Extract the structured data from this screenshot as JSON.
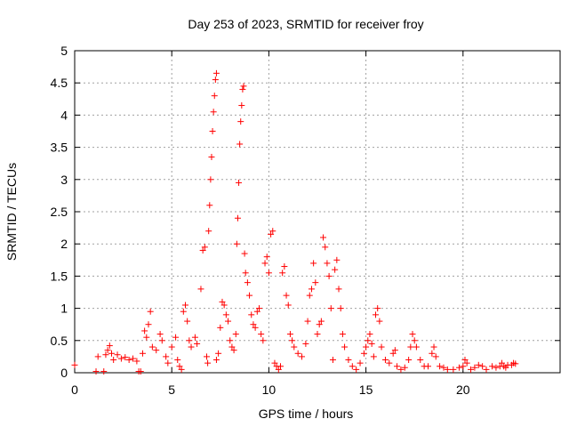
{
  "chart_data": {
    "type": "scatter",
    "title": "Day 253 of 2023, SRMTID for receiver froy",
    "xlabel": "GPS time / hours",
    "ylabel": "SRMTID / TECUs",
    "xlim": [
      0,
      25
    ],
    "ylim": [
      0,
      5
    ],
    "xticks": [
      0,
      5,
      10,
      15,
      20
    ],
    "xtick_labels": [
      "0",
      "5",
      "10",
      "15",
      "20"
    ],
    "yticks": [
      0,
      0.5,
      1,
      1.5,
      2,
      2.5,
      3,
      3.5,
      4,
      4.5,
      5
    ],
    "ytick_labels": [
      "0",
      "0.5",
      "1",
      "1.5",
      "2",
      "2.5",
      "3",
      "3.5",
      "4",
      "4.5",
      "5"
    ],
    "grid": true,
    "marker": "+",
    "color": "#ff0000",
    "series": [
      {
        "name": "SRMTID",
        "points": [
          [
            0.0,
            0.12
          ],
          [
            1.1,
            0.02
          ],
          [
            1.2,
            0.25
          ],
          [
            1.5,
            0.02
          ],
          [
            1.6,
            0.28
          ],
          [
            1.7,
            0.35
          ],
          [
            1.8,
            0.42
          ],
          [
            1.9,
            0.3
          ],
          [
            2.0,
            0.2
          ],
          [
            2.2,
            0.28
          ],
          [
            2.4,
            0.22
          ],
          [
            2.6,
            0.24
          ],
          [
            2.8,
            0.2
          ],
          [
            3.0,
            0.22
          ],
          [
            3.2,
            0.18
          ],
          [
            3.3,
            0.02
          ],
          [
            3.4,
            0.02
          ],
          [
            3.5,
            0.3
          ],
          [
            3.6,
            0.65
          ],
          [
            3.7,
            0.55
          ],
          [
            3.8,
            0.75
          ],
          [
            3.9,
            0.95
          ],
          [
            4.0,
            0.4
          ],
          [
            4.2,
            0.35
          ],
          [
            4.4,
            0.6
          ],
          [
            4.5,
            0.5
          ],
          [
            4.7,
            0.25
          ],
          [
            4.8,
            0.15
          ],
          [
            5.0,
            0.4
          ],
          [
            5.2,
            0.55
          ],
          [
            5.3,
            0.2
          ],
          [
            5.4,
            0.1
          ],
          [
            5.5,
            0.05
          ],
          [
            5.6,
            0.95
          ],
          [
            5.7,
            1.05
          ],
          [
            5.8,
            0.8
          ],
          [
            5.9,
            0.5
          ],
          [
            6.0,
            0.4
          ],
          [
            6.2,
            0.55
          ],
          [
            6.3,
            0.45
          ],
          [
            6.5,
            1.3
          ],
          [
            6.6,
            1.9
          ],
          [
            6.7,
            1.95
          ],
          [
            6.8,
            0.25
          ],
          [
            6.85,
            0.15
          ],
          [
            6.9,
            2.2
          ],
          [
            6.95,
            2.6
          ],
          [
            7.0,
            3.0
          ],
          [
            7.05,
            3.35
          ],
          [
            7.1,
            3.75
          ],
          [
            7.15,
            4.05
          ],
          [
            7.2,
            4.3
          ],
          [
            7.25,
            4.55
          ],
          [
            7.3,
            4.65
          ],
          [
            7.3,
            0.2
          ],
          [
            7.4,
            0.3
          ],
          [
            7.5,
            0.7
          ],
          [
            7.6,
            1.1
          ],
          [
            7.7,
            1.05
          ],
          [
            7.8,
            0.9
          ],
          [
            7.9,
            0.8
          ],
          [
            8.0,
            0.5
          ],
          [
            8.1,
            0.4
          ],
          [
            8.2,
            0.35
          ],
          [
            8.3,
            0.6
          ],
          [
            8.35,
            2.0
          ],
          [
            8.4,
            2.4
          ],
          [
            8.45,
            2.95
          ],
          [
            8.5,
            3.55
          ],
          [
            8.55,
            3.9
          ],
          [
            8.6,
            4.15
          ],
          [
            8.65,
            4.4
          ],
          [
            8.7,
            4.45
          ],
          [
            8.75,
            1.85
          ],
          [
            8.8,
            1.55
          ],
          [
            8.9,
            1.4
          ],
          [
            9.0,
            1.2
          ],
          [
            9.1,
            0.9
          ],
          [
            9.2,
            0.75
          ],
          [
            9.3,
            0.7
          ],
          [
            9.4,
            0.95
          ],
          [
            9.5,
            1.0
          ],
          [
            9.6,
            0.6
          ],
          [
            9.7,
            0.5
          ],
          [
            9.8,
            1.7
          ],
          [
            9.9,
            1.8
          ],
          [
            10.0,
            1.55
          ],
          [
            10.1,
            2.15
          ],
          [
            10.2,
            2.2
          ],
          [
            10.3,
            0.15
          ],
          [
            10.4,
            0.1
          ],
          [
            10.5,
            0.05
          ],
          [
            10.6,
            0.1
          ],
          [
            10.7,
            1.55
          ],
          [
            10.8,
            1.65
          ],
          [
            10.9,
            1.2
          ],
          [
            11.0,
            1.05
          ],
          [
            11.1,
            0.6
          ],
          [
            11.2,
            0.5
          ],
          [
            11.3,
            0.4
          ],
          [
            11.5,
            0.3
          ],
          [
            11.7,
            0.25
          ],
          [
            11.9,
            0.45
          ],
          [
            12.0,
            0.8
          ],
          [
            12.1,
            1.2
          ],
          [
            12.2,
            1.3
          ],
          [
            12.3,
            1.7
          ],
          [
            12.4,
            1.4
          ],
          [
            12.5,
            0.6
          ],
          [
            12.6,
            0.75
          ],
          [
            12.7,
            0.8
          ],
          [
            12.8,
            2.1
          ],
          [
            12.9,
            1.95
          ],
          [
            13.0,
            1.7
          ],
          [
            13.1,
            1.5
          ],
          [
            13.2,
            1.0
          ],
          [
            13.3,
            0.2
          ],
          [
            13.4,
            1.6
          ],
          [
            13.5,
            1.75
          ],
          [
            13.6,
            1.3
          ],
          [
            13.7,
            1.0
          ],
          [
            13.8,
            0.6
          ],
          [
            13.9,
            0.4
          ],
          [
            14.1,
            0.2
          ],
          [
            14.3,
            0.1
          ],
          [
            14.5,
            0.05
          ],
          [
            14.7,
            0.15
          ],
          [
            14.9,
            0.3
          ],
          [
            15.0,
            0.4
          ],
          [
            15.1,
            0.5
          ],
          [
            15.2,
            0.6
          ],
          [
            15.3,
            0.45
          ],
          [
            15.4,
            0.25
          ],
          [
            15.5,
            0.9
          ],
          [
            15.6,
            1.0
          ],
          [
            15.7,
            0.8
          ],
          [
            15.8,
            0.4
          ],
          [
            16.0,
            0.2
          ],
          [
            16.2,
            0.15
          ],
          [
            16.4,
            0.3
          ],
          [
            16.5,
            0.35
          ],
          [
            16.6,
            0.1
          ],
          [
            16.8,
            0.05
          ],
          [
            17.0,
            0.08
          ],
          [
            17.2,
            0.2
          ],
          [
            17.3,
            0.4
          ],
          [
            17.4,
            0.6
          ],
          [
            17.5,
            0.5
          ],
          [
            17.6,
            0.4
          ],
          [
            17.8,
            0.2
          ],
          [
            18.0,
            0.1
          ],
          [
            18.2,
            0.1
          ],
          [
            18.4,
            0.3
          ],
          [
            18.5,
            0.4
          ],
          [
            18.6,
            0.25
          ],
          [
            18.8,
            0.1
          ],
          [
            19.0,
            0.08
          ],
          [
            19.2,
            0.05
          ],
          [
            19.5,
            0.05
          ],
          [
            19.8,
            0.08
          ],
          [
            20.0,
            0.1
          ],
          [
            20.1,
            0.2
          ],
          [
            20.2,
            0.15
          ],
          [
            20.4,
            0.05
          ],
          [
            20.6,
            0.08
          ],
          [
            20.8,
            0.12
          ],
          [
            21.0,
            0.1
          ],
          [
            21.2,
            0.05
          ],
          [
            21.5,
            0.1
          ],
          [
            21.7,
            0.08
          ],
          [
            21.9,
            0.1
          ],
          [
            22.0,
            0.15
          ],
          [
            22.1,
            0.1
          ],
          [
            22.2,
            0.08
          ],
          [
            22.3,
            0.12
          ],
          [
            22.5,
            0.12
          ],
          [
            22.6,
            0.15
          ],
          [
            22.7,
            0.14
          ]
        ]
      }
    ]
  }
}
